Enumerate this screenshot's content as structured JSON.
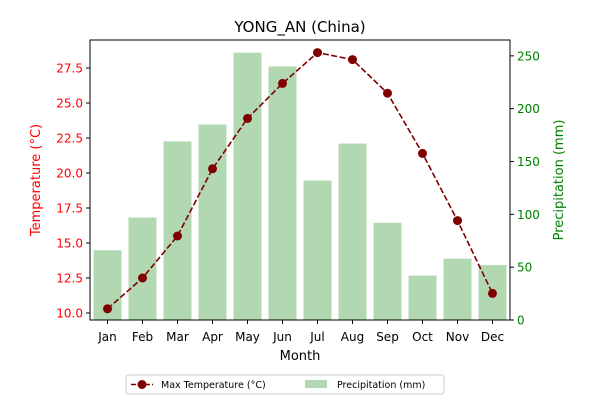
{
  "chart_data": {
    "type": "bar+line",
    "title": "YONG_AN (China)",
    "xlabel": "Month",
    "categories": [
      "Jan",
      "Feb",
      "Mar",
      "Apr",
      "May",
      "Jun",
      "Jul",
      "Aug",
      "Sep",
      "Oct",
      "Nov",
      "Dec"
    ],
    "left_axis": {
      "label": "Temperature (°C)",
      "color": "#ff0000",
      "ylim": [
        9.5,
        29.5
      ],
      "ticks": [
        "10.0",
        "12.5",
        "15.0",
        "17.5",
        "20.0",
        "22.5",
        "25.0",
        "27.5"
      ]
    },
    "right_axis": {
      "label": "Precipitation (mm)",
      "color": "#008000",
      "ylim": [
        0,
        265
      ],
      "ticks": [
        "0",
        "50",
        "100",
        "150",
        "200",
        "250"
      ]
    },
    "series": [
      {
        "name": "Max Temperature (°C)",
        "type": "line",
        "axis": "left",
        "color": "#800000",
        "values": [
          10.3,
          12.5,
          15.5,
          20.3,
          23.9,
          26.4,
          28.6,
          28.1,
          25.7,
          21.4,
          16.6,
          11.4
        ]
      },
      {
        "name": "Precipitation (mm)",
        "type": "bar",
        "axis": "right",
        "color": "#b2d8b2",
        "values": [
          66,
          97,
          169,
          185,
          253,
          240,
          132,
          167,
          92,
          42,
          58,
          52
        ]
      }
    ],
    "legend_position": "bottom-center",
    "grid": false
  }
}
